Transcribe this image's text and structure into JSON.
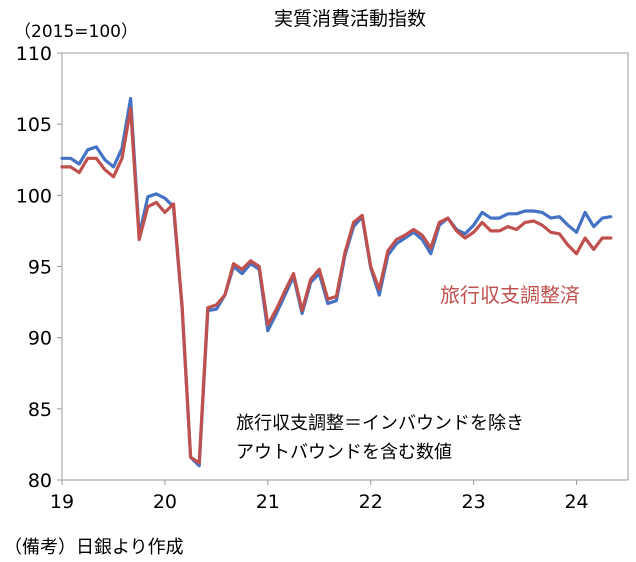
{
  "chart_data": {
    "type": "line",
    "title": "実質消費活動指数",
    "unit_label": "（2015=100）",
    "ylim": [
      80,
      110
    ],
    "yticks": [
      80,
      85,
      90,
      95,
      100,
      105,
      110
    ],
    "x_start": 2019.0,
    "x_end": 2024.5,
    "xtick_values": [
      2019,
      2020,
      2021,
      2022,
      2023,
      2024
    ],
    "xtick_labels": [
      "19",
      "20",
      "21",
      "22",
      "23",
      "24"
    ],
    "grid": false,
    "series": [
      {
        "name": "",
        "color": "#4472C4",
        "values": [
          102.6,
          102.6,
          102.2,
          103.2,
          103.4,
          102.5,
          102.0,
          103.3,
          106.8,
          97.2,
          99.9,
          100.1,
          99.8,
          99.2,
          92.1,
          81.6,
          81.0,
          91.9,
          92.0,
          93.0,
          95.0,
          94.5,
          95.2,
          94.8,
          90.5,
          91.7,
          93.0,
          94.3,
          91.7,
          93.9,
          94.5,
          92.4,
          92.6,
          95.8,
          97.8,
          98.5,
          94.9,
          93.0,
          95.8,
          96.6,
          97.0,
          97.4,
          96.9,
          95.9,
          97.9,
          98.4,
          97.6,
          97.3,
          97.9,
          98.8,
          98.4,
          98.4,
          98.7,
          98.7,
          98.9,
          98.9,
          98.8,
          98.4,
          98.5,
          97.9,
          97.4,
          98.8,
          97.8,
          98.4,
          98.5
        ]
      },
      {
        "name": "旅行収支調整済",
        "color": "#C0504D",
        "values": [
          102.0,
          102.0,
          101.6,
          102.6,
          102.6,
          101.8,
          101.3,
          102.6,
          106.1,
          96.9,
          99.2,
          99.5,
          98.8,
          99.4,
          92.2,
          81.6,
          81.2,
          92.1,
          92.3,
          93.0,
          95.2,
          94.8,
          95.4,
          95.0,
          90.9,
          92.0,
          93.3,
          94.5,
          91.9,
          94.1,
          94.8,
          92.7,
          92.9,
          96.0,
          98.1,
          98.6,
          95.0,
          93.4,
          96.1,
          96.9,
          97.2,
          97.6,
          97.2,
          96.3,
          98.1,
          98.4,
          97.5,
          97.0,
          97.4,
          98.1,
          97.5,
          97.5,
          97.8,
          97.6,
          98.1,
          98.2,
          97.9,
          97.4,
          97.3,
          96.5,
          95.9,
          97.0,
          96.2,
          97.0,
          97.0
        ]
      }
    ],
    "annotation_lines": [
      "旅行収支調整＝インバウンドを除き",
      "アウトバウンドを含む数値"
    ],
    "source_note": "（備考）日銀より作成"
  }
}
